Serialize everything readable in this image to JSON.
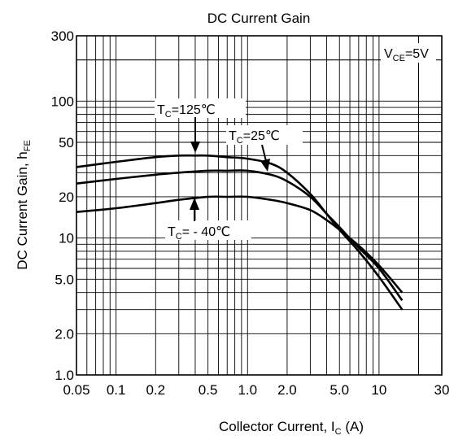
{
  "chart_data": {
    "type": "line",
    "title": "DC Current Gain",
    "xlabel": {
      "main": "Collector Current, I",
      "sub": "C",
      "tail": " (A)"
    },
    "ylabel": {
      "main": "DC Current Gain, h",
      "sub": "FE"
    },
    "x_scale": "log",
    "y_scale": "log",
    "xlim": [
      0.05,
      30
    ],
    "ylim": [
      1,
      300
    ],
    "grid": true,
    "x_ticks": [
      {
        "value": 0.05,
        "label": "0.05"
      },
      {
        "value": 0.1,
        "label": "0.1"
      },
      {
        "value": 0.2,
        "label": "0.2"
      },
      {
        "value": 0.5,
        "label": "0.5"
      },
      {
        "value": 1,
        "label": "1.0"
      },
      {
        "value": 2,
        "label": "2.0"
      },
      {
        "value": 5,
        "label": "5.0"
      },
      {
        "value": 10,
        "label": "10"
      },
      {
        "value": 30,
        "label": "30"
      }
    ],
    "y_ticks": [
      {
        "value": 1,
        "label": "1.0"
      },
      {
        "value": 2,
        "label": "2.0"
      },
      {
        "value": 5,
        "label": "5.0"
      },
      {
        "value": 10,
        "label": "10"
      },
      {
        "value": 20,
        "label": "20"
      },
      {
        "value": 50,
        "label": "50"
      },
      {
        "value": 100,
        "label": "100"
      },
      {
        "value": 300,
        "label": "300"
      }
    ],
    "condition": {
      "main": "V",
      "sub": "CE",
      "tail": "=5V"
    },
    "series": [
      {
        "label_main": "T",
        "label_sub": "C",
        "label_tail": "=125℃",
        "x": [
          0.05,
          0.1,
          0.2,
          0.3,
          0.4,
          0.5,
          0.7,
          1.0,
          1.5,
          2.0,
          3.0,
          4.0,
          5.0,
          7.0,
          10.0,
          15.0
        ],
        "y": [
          33,
          36,
          39,
          40,
          40,
          40,
          39,
          38,
          35,
          30,
          21,
          15,
          11.5,
          8,
          5.2,
          3.0
        ]
      },
      {
        "label_main": "T",
        "label_sub": "C",
        "label_tail": "=25℃",
        "x": [
          0.05,
          0.1,
          0.2,
          0.3,
          0.5,
          0.7,
          1.0,
          1.5,
          2.0,
          3.0,
          4.0,
          5.0,
          7.0,
          10.0,
          15.0
        ],
        "y": [
          25,
          27,
          29,
          30,
          31,
          31,
          31,
          29,
          26,
          20,
          15,
          12,
          8.5,
          6,
          3.5
        ]
      },
      {
        "label_main": "T",
        "label_sub": "C",
        "label_tail": "= - 40℃",
        "x": [
          0.05,
          0.1,
          0.2,
          0.3,
          0.5,
          0.7,
          1.0,
          1.5,
          2.0,
          3.0,
          4.0,
          5.0,
          7.0,
          10.0,
          15.0
        ],
        "y": [
          15.5,
          16.5,
          18,
          19,
          20,
          20,
          20,
          19,
          18,
          16,
          13.5,
          11.5,
          8.8,
          6.3,
          4.0
        ]
      }
    ]
  }
}
